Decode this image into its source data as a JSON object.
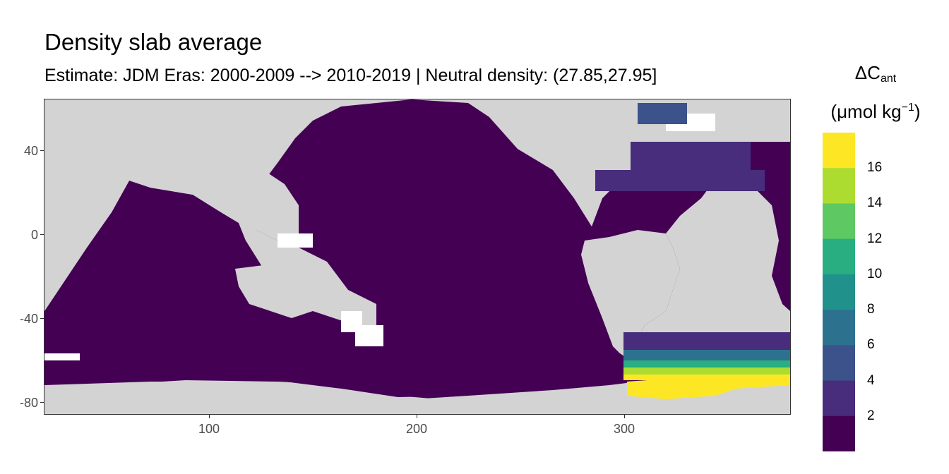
{
  "title": "Density slab average",
  "subtitle": "Estimate: JDM Eras: 2000-2009 --> 2010-2019 | Neutral density: (27.85,27.95]",
  "map": {
    "type": "raster_map",
    "x_range": [
      20,
      380
    ],
    "y_range": [
      -85,
      65
    ],
    "x_ticks": [
      "100",
      "200",
      "300"
    ],
    "y_ticks": [
      "40",
      "0",
      "-40",
      "-80"
    ],
    "land_color": "#d3d3d3",
    "no_data_color": "#ffffff",
    "grid": false
  },
  "legend": {
    "title_main": "ΔC",
    "title_sub": "ant",
    "title_unit_pre": "(μmol kg",
    "title_unit_sup": "−1",
    "title_unit_post": ")",
    "labels": [
      "16",
      "14",
      "12",
      "10",
      "8",
      "6",
      "4",
      "2"
    ],
    "colors": [
      "#fde725",
      "#addc30",
      "#5ec962",
      "#28ae80",
      "#21918c",
      "#2c728e",
      "#3b528b",
      "#472d7b",
      "#440154"
    ]
  }
}
